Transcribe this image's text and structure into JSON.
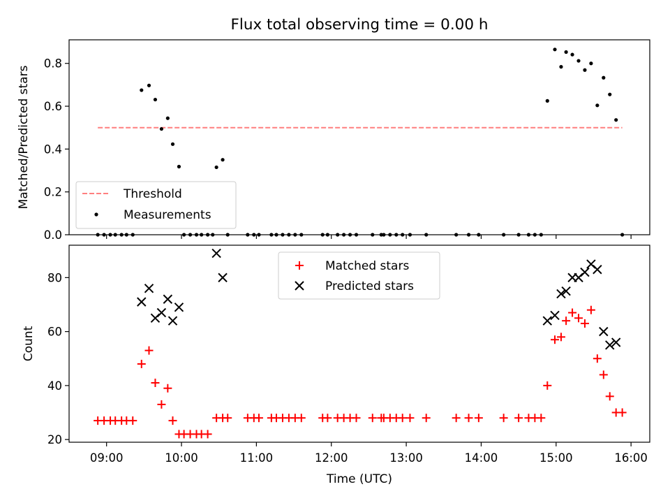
{
  "chart_data": [
    {
      "type": "scatter",
      "title": "Flux total observing time = 0.00 h",
      "xlabel": "",
      "ylabel": "Matched/Predicted stars",
      "xlim": [
        "08:30",
        "16:15"
      ],
      "ylim": [
        0,
        0.91
      ],
      "yticks": [
        0.0,
        0.2,
        0.4,
        0.6,
        0.8
      ],
      "ytick_labels": [
        "0.0",
        "0.2",
        "0.4",
        "0.6",
        "0.8"
      ],
      "grid": false,
      "legend_position": "lower-left",
      "threshold": {
        "name": "Threshold",
        "value": 0.5,
        "x_range": [
          "08:53",
          "15:53"
        ],
        "color": "#ff7f7f"
      },
      "series": [
        {
          "name": "Measurements",
          "color": "#000000",
          "points": [
            [
              "08:53",
              0.0
            ],
            [
              "08:58",
              0.0
            ],
            [
              "09:03",
              0.0
            ],
            [
              "09:07",
              0.0
            ],
            [
              "09:12",
              0.0
            ],
            [
              "09:16",
              0.0
            ],
            [
              "09:21",
              0.0
            ],
            [
              "09:28",
              0.675
            ],
            [
              "09:34",
              0.697
            ],
            [
              "09:39",
              0.631
            ],
            [
              "09:44",
              0.494
            ],
            [
              "09:49",
              0.544
            ],
            [
              "09:53",
              0.423
            ],
            [
              "09:58",
              0.318
            ],
            [
              "10:02",
              0.0
            ],
            [
              "10:07",
              0.0
            ],
            [
              "10:12",
              0.0
            ],
            [
              "10:16",
              0.0
            ],
            [
              "10:21",
              0.0
            ],
            [
              "10:25",
              0.0
            ],
            [
              "10:28",
              0.315
            ],
            [
              "10:33",
              0.35
            ],
            [
              "10:37",
              0.0
            ],
            [
              "10:53",
              0.0
            ],
            [
              "10:58",
              0.0
            ],
            [
              "11:02",
              0.0
            ],
            [
              "11:12",
              0.0
            ],
            [
              "11:16",
              0.0
            ],
            [
              "11:21",
              0.0
            ],
            [
              "11:26",
              0.0
            ],
            [
              "11:31",
              0.0
            ],
            [
              "11:36",
              0.0
            ],
            [
              "11:53",
              0.0
            ],
            [
              "11:57",
              0.0
            ],
            [
              "12:05",
              0.0
            ],
            [
              "12:10",
              0.0
            ],
            [
              "12:15",
              0.0
            ],
            [
              "12:20",
              0.0
            ],
            [
              "12:33",
              0.0
            ],
            [
              "12:40",
              0.0
            ],
            [
              "12:42",
              0.0
            ],
            [
              "12:47",
              0.0
            ],
            [
              "12:52",
              0.0
            ],
            [
              "12:57",
              0.0
            ],
            [
              "13:03",
              0.0
            ],
            [
              "13:16",
              0.0
            ],
            [
              "13:40",
              0.0
            ],
            [
              "13:50",
              0.0
            ],
            [
              "13:58",
              0.0
            ],
            [
              "14:18",
              0.0
            ],
            [
              "14:30",
              0.0
            ],
            [
              "14:38",
              0.0
            ],
            [
              "14:43",
              0.0
            ],
            [
              "14:48",
              0.0
            ],
            [
              "14:53",
              0.625
            ],
            [
              "14:59",
              0.865
            ],
            [
              "15:04",
              0.784
            ],
            [
              "15:08",
              0.853
            ],
            [
              "15:13",
              0.841
            ],
            [
              "15:18",
              0.812
            ],
            [
              "15:23",
              0.769
            ],
            [
              "15:28",
              0.8
            ],
            [
              "15:33",
              0.604
            ],
            [
              "15:38",
              0.733
            ],
            [
              "15:43",
              0.655
            ],
            [
              "15:48",
              0.536
            ],
            [
              "15:53",
              0.0
            ]
          ]
        }
      ]
    },
    {
      "type": "scatter",
      "title": "",
      "xlabel": "Time (UTC)",
      "ylabel": "Count",
      "xlim": [
        "08:30",
        "16:15"
      ],
      "ylim": [
        19,
        92
      ],
      "yticks": [
        20,
        40,
        60,
        80
      ],
      "ytick_labels": [
        "20",
        "40",
        "60",
        "80"
      ],
      "xticks": [
        "09:00",
        "10:00",
        "11:00",
        "12:00",
        "13:00",
        "14:00",
        "15:00",
        "16:00"
      ],
      "xtick_labels": [
        "09:00",
        "10:00",
        "11:00",
        "12:00",
        "13:00",
        "14:00",
        "15:00",
        "16:00"
      ],
      "grid": false,
      "legend_position": "upper-center",
      "series": [
        {
          "name": "Matched stars",
          "marker": "plus",
          "color": "#ff0000",
          "points": [
            [
              "08:53",
              27
            ],
            [
              "08:58",
              27
            ],
            [
              "09:03",
              27
            ],
            [
              "09:07",
              27
            ],
            [
              "09:12",
              27
            ],
            [
              "09:16",
              27
            ],
            [
              "09:21",
              27
            ],
            [
              "09:28",
              48
            ],
            [
              "09:34",
              53
            ],
            [
              "09:39",
              41
            ],
            [
              "09:44",
              33
            ],
            [
              "09:49",
              39
            ],
            [
              "09:53",
              27
            ],
            [
              "09:58",
              22
            ],
            [
              "10:02",
              22
            ],
            [
              "10:07",
              22
            ],
            [
              "10:12",
              22
            ],
            [
              "10:16",
              22
            ],
            [
              "10:21",
              22
            ],
            [
              "10:28",
              28
            ],
            [
              "10:33",
              28
            ],
            [
              "10:37",
              28
            ],
            [
              "10:53",
              28
            ],
            [
              "10:58",
              28
            ],
            [
              "11:02",
              28
            ],
            [
              "11:12",
              28
            ],
            [
              "11:16",
              28
            ],
            [
              "11:21",
              28
            ],
            [
              "11:26",
              28
            ],
            [
              "11:31",
              28
            ],
            [
              "11:36",
              28
            ],
            [
              "11:53",
              28
            ],
            [
              "11:57",
              28
            ],
            [
              "12:05",
              28
            ],
            [
              "12:10",
              28
            ],
            [
              "12:15",
              28
            ],
            [
              "12:20",
              28
            ],
            [
              "12:33",
              28
            ],
            [
              "12:40",
              28
            ],
            [
              "12:42",
              28
            ],
            [
              "12:47",
              28
            ],
            [
              "12:52",
              28
            ],
            [
              "12:57",
              28
            ],
            [
              "13:03",
              28
            ],
            [
              "13:16",
              28
            ],
            [
              "13:40",
              28
            ],
            [
              "13:50",
              28
            ],
            [
              "13:58",
              28
            ],
            [
              "14:18",
              28
            ],
            [
              "14:30",
              28
            ],
            [
              "14:38",
              28
            ],
            [
              "14:43",
              28
            ],
            [
              "14:48",
              28
            ],
            [
              "14:53",
              40
            ],
            [
              "14:59",
              57
            ],
            [
              "15:04",
              58
            ],
            [
              "15:08",
              64
            ],
            [
              "15:13",
              67
            ],
            [
              "15:18",
              65
            ],
            [
              "15:23",
              63
            ],
            [
              "15:28",
              68
            ],
            [
              "15:33",
              50
            ],
            [
              "15:38",
              44
            ],
            [
              "15:43",
              36
            ],
            [
              "15:48",
              30
            ],
            [
              "15:53",
              30
            ]
          ]
        },
        {
          "name": "Predicted stars",
          "marker": "x",
          "color": "#000000",
          "points": [
            [
              "09:28",
              71
            ],
            [
              "09:34",
              76
            ],
            [
              "09:39",
              65
            ],
            [
              "09:44",
              67
            ],
            [
              "09:49",
              72
            ],
            [
              "09:53",
              64
            ],
            [
              "09:58",
              69
            ],
            [
              "10:28",
              89
            ],
            [
              "10:33",
              80
            ],
            [
              "14:53",
              64
            ],
            [
              "14:59",
              66
            ],
            [
              "15:04",
              74
            ],
            [
              "15:08",
              75
            ],
            [
              "15:13",
              80
            ],
            [
              "15:18",
              80
            ],
            [
              "15:23",
              82
            ],
            [
              "15:28",
              85
            ],
            [
              "15:33",
              83
            ],
            [
              "15:38",
              60
            ],
            [
              "15:43",
              55
            ],
            [
              "15:48",
              56
            ]
          ]
        }
      ]
    }
  ]
}
